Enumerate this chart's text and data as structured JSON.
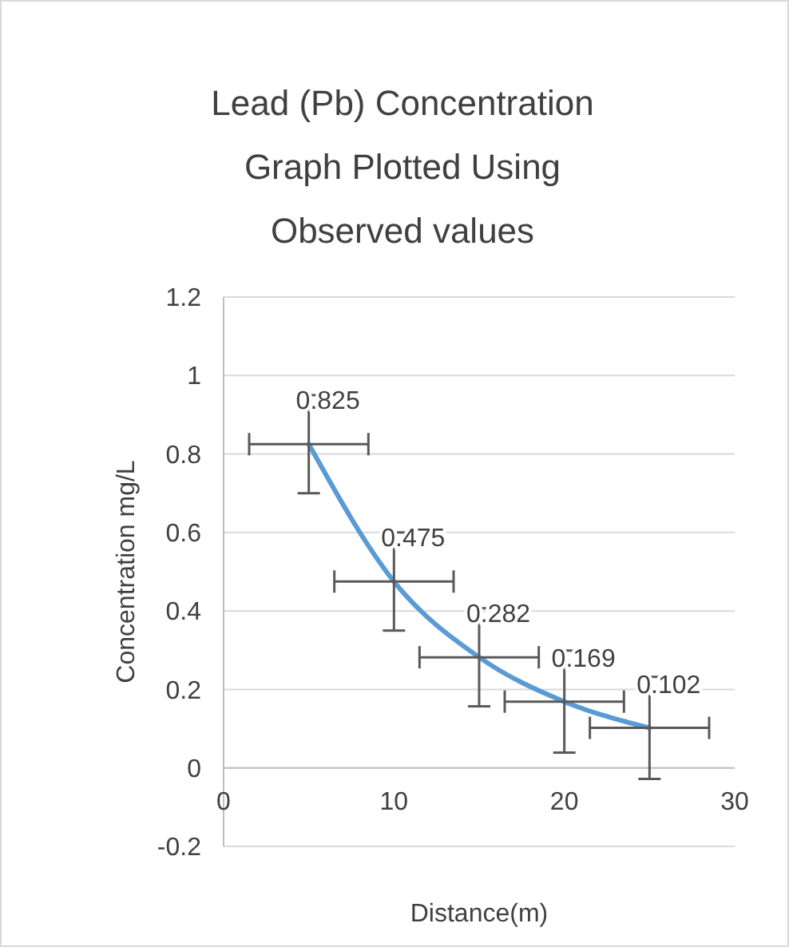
{
  "chart_data": {
    "type": "line",
    "title": "Lead (Pb)  Concentration Graph Plotted Using Observed values",
    "xlabel": "Distance(m)",
    "ylabel": "Concentration mg/L",
    "x": [
      5,
      10,
      15,
      20,
      25
    ],
    "series": [
      {
        "color": "#5b9bd5",
        "values": [
          0.825,
          0.475,
          0.282,
          0.169,
          0.102
        ],
        "errors": [
          0.125,
          0.125,
          0.125,
          0.13,
          0.13
        ],
        "xerrors": [
          3.5,
          3.5,
          3.5,
          3.5,
          3.5
        ]
      }
    ],
    "data_labels": true,
    "marker": "none",
    "line_style": "solid",
    "grid": "y",
    "xlim": [
      0,
      30
    ],
    "xticks": [
      0,
      10,
      20,
      30
    ],
    "ylim": [
      -0.2,
      1.2
    ],
    "yticks": [
      -0.2,
      0,
      0.2,
      0.4,
      0.6,
      0.8,
      1,
      1.2
    ]
  }
}
